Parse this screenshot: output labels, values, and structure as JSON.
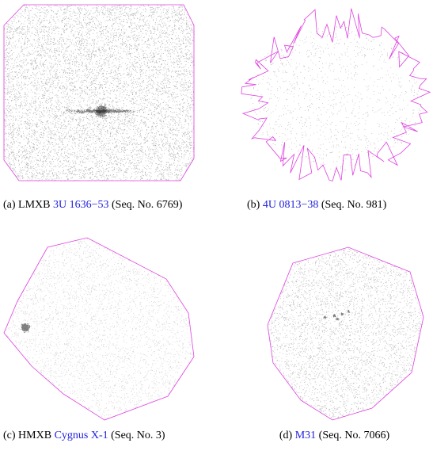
{
  "panels": [
    {
      "label": "(a)",
      "prefix": "LMXB",
      "link": "3U 1636−53",
      "suffix": "(Seq. No. 6769)"
    },
    {
      "label": "(b)",
      "link": "4U 0813−38",
      "suffix": "(Seq. No. 981)"
    },
    {
      "label": "(c)",
      "prefix": "HMXB",
      "link": "Cygnus X-1",
      "suffix": "(Seq. No. 3)"
    },
    {
      "label": "(d)",
      "link": "M31",
      "suffix": "(Seq. No. 7066)"
    }
  ]
}
